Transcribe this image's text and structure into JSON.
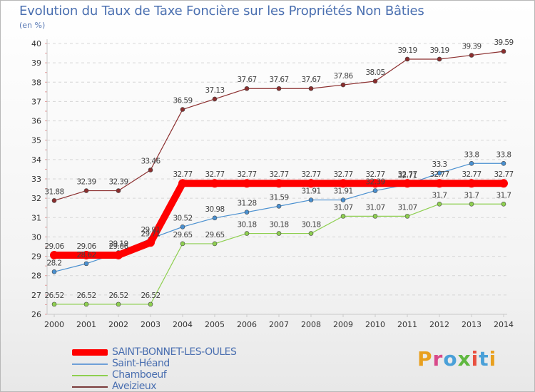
{
  "chart_data": {
    "type": "line",
    "title": "Evolution du Taux de Taxe Foncière sur les Propriétés Non Bâties",
    "subtitle": "(en %)",
    "xlabel": "",
    "ylabel": "",
    "categories": [
      "2000",
      "2001",
      "2002",
      "2003",
      "2004",
      "2005",
      "2006",
      "2007",
      "2008",
      "2009",
      "2010",
      "2011",
      "2012",
      "2013",
      "2014"
    ],
    "ylim": [
      26,
      40
    ],
    "yticks": [
      26,
      27,
      28,
      29,
      30,
      31,
      32,
      33,
      34,
      35,
      36,
      37,
      38,
      39,
      40
    ],
    "grid": true,
    "legend_position": "bottom-left",
    "series": [
      {
        "name": "SAINT-BONNET-LES-OULES",
        "color": "#ff0000",
        "values": [
          29.06,
          29.06,
          29.06,
          29.71,
          32.77,
          32.77,
          32.77,
          32.77,
          32.77,
          32.77,
          32.77,
          32.77,
          32.77,
          32.77,
          32.77
        ],
        "labels": [
          "29.06",
          "29.06",
          "29.06",
          "29.71",
          "32.77",
          "32.77",
          "32.77",
          "32.77",
          "32.77",
          "32.77",
          "32.77",
          "32.77",
          "32.77",
          "32.77",
          "32.77"
        ]
      },
      {
        "name": "Saint-Héand",
        "color": "#4a90d0",
        "values": [
          28.2,
          28.62,
          29.19,
          29.91,
          30.52,
          30.98,
          31.28,
          31.59,
          31.91,
          31.91,
          32.39,
          32.71,
          33.3,
          33.8,
          33.8
        ],
        "labels": [
          "28.2",
          "28.62",
          "29.19",
          "29.91",
          "30.52",
          "30.98",
          "31.28",
          "31.59",
          "31.91",
          "31.91",
          "32.39",
          "32.71",
          "33.3",
          "33.8",
          "33.8"
        ]
      },
      {
        "name": "Chamboeuf",
        "color": "#8ecf50",
        "values": [
          26.52,
          26.52,
          26.52,
          26.52,
          29.65,
          29.65,
          30.18,
          30.18,
          30.18,
          31.07,
          31.07,
          31.07,
          31.7,
          31.7,
          31.7
        ],
        "labels": [
          "26.52",
          "26.52",
          "26.52",
          "26.52",
          "29.65",
          "29.65",
          "30.18",
          "30.18",
          "30.18",
          "31.07",
          "31.07",
          "31.07",
          "31.7",
          "31.7",
          "31.7"
        ]
      },
      {
        "name": "Aveizieux",
        "color": "#8b2e2e",
        "values": [
          31.88,
          32.39,
          32.39,
          33.46,
          36.59,
          37.13,
          37.67,
          37.67,
          37.67,
          37.86,
          38.05,
          39.19,
          39.19,
          39.39,
          39.59
        ],
        "labels": [
          "31.88",
          "32.39",
          "32.39",
          "33.46",
          "36.59",
          "37.13",
          "37.67",
          "37.67",
          "37.67",
          "37.86",
          "38.05",
          "39.19",
          "39.19",
          "39.39",
          "39.59"
        ]
      }
    ]
  },
  "legend": {
    "items": [
      {
        "label": "SAINT-BONNET-LES-OULES",
        "color": "#ff0000"
      },
      {
        "label": "Saint-Héand",
        "color": "#6fa0d8"
      },
      {
        "label": "Chamboeuf",
        "color": "#8ecf50"
      },
      {
        "label": "Aveizieux",
        "color": "#7a3b3b"
      }
    ]
  },
  "logo": {
    "letters": [
      "P",
      "r",
      "o",
      "x",
      "i",
      "t",
      "i"
    ],
    "colors": [
      "#e8a020",
      "#d84a8a",
      "#4aa0d8",
      "#60b840",
      "#e85040",
      "#4aa0d8",
      "#e8a020"
    ]
  }
}
